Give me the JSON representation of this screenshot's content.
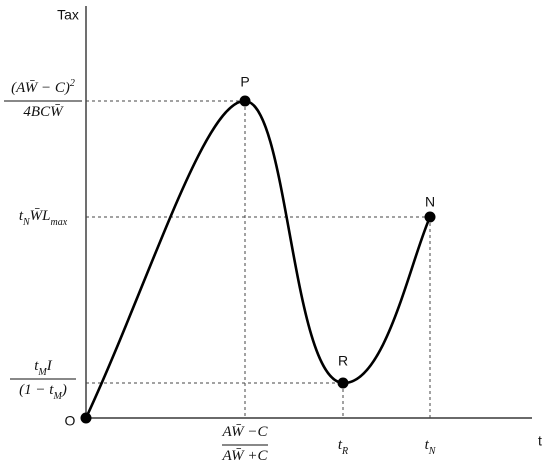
{
  "axes": {
    "y_title": "Tax",
    "x_title": "t",
    "origin": "O"
  },
  "points": {
    "peak": "P",
    "trough": "R",
    "end": "N"
  },
  "y_labels": {
    "peak": {
      "numerator": [
        {
          "t": "(AW̄ − C)"
        },
        {
          "p": "2"
        }
      ],
      "denominator": [
        {
          "t": "4BCW̄"
        }
      ]
    },
    "n_level": [
      {
        "t": "t"
      },
      {
        "s": "N"
      },
      {
        "t": "W̄L"
      },
      {
        "s": "max"
      }
    ],
    "r_level": {
      "numerator": [
        {
          "t": "t"
        },
        {
          "s": "M"
        },
        {
          "t": "I"
        }
      ],
      "denominator": [
        {
          "t": "(1 − t"
        },
        {
          "s": "M"
        },
        {
          "t": ")"
        }
      ]
    }
  },
  "x_labels": {
    "peak": {
      "numerator": [
        {
          "t": "AW̄ −C"
        }
      ],
      "denominator": [
        {
          "t": "AW̄ +C"
        }
      ]
    },
    "t_R": [
      {
        "t": "t"
      },
      {
        "s": "R"
      }
    ],
    "t_N": [
      {
        "t": "t"
      },
      {
        "s": "N"
      }
    ]
  }
}
